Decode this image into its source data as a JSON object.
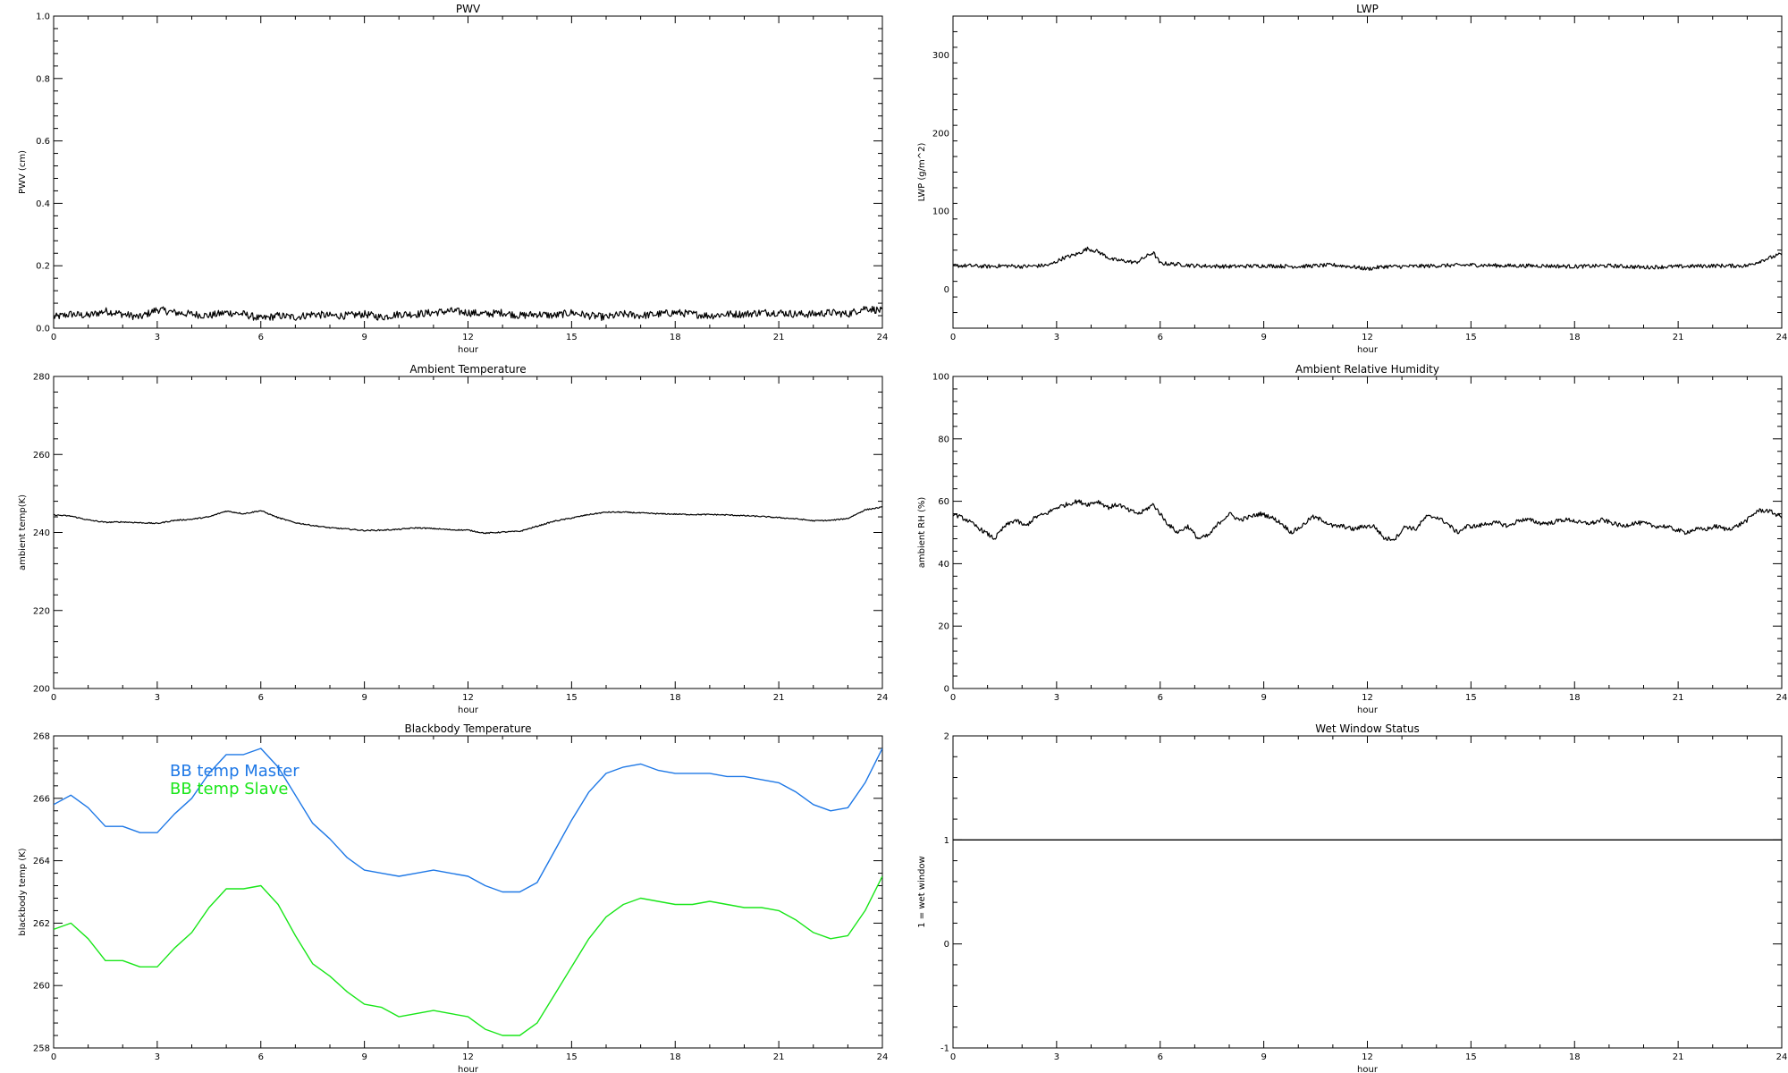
{
  "chart_data": [
    {
      "type": "line",
      "title": "PWV",
      "xlabel": "hour",
      "ylabel": "PWV (cm)",
      "xlim": [
        0,
        24
      ],
      "ylim": [
        0,
        1.0
      ],
      "xticks": [
        "0",
        "3",
        "6",
        "9",
        "12",
        "15",
        "18",
        "21",
        "24"
      ],
      "yticks": [
        "0.0",
        "0.2",
        "0.4",
        "0.6",
        "0.8",
        "1.0"
      ],
      "series": [
        {
          "color": "#000000",
          "noise": 0.012,
          "x": [
            0,
            0.5,
            1,
            1.5,
            2,
            2.5,
            3,
            3.5,
            4,
            4.5,
            5,
            5.5,
            6,
            6.5,
            7,
            7.5,
            8,
            8.5,
            9,
            9.5,
            10,
            10.5,
            11,
            11.5,
            12,
            12.5,
            13,
            13.5,
            14,
            14.5,
            15,
            15.5,
            16,
            16.5,
            17,
            17.5,
            18,
            18.5,
            19,
            19.5,
            20,
            20.5,
            21,
            21.5,
            22,
            22.5,
            23,
            23.5,
            24
          ],
          "y": [
            0.035,
            0.045,
            0.04,
            0.055,
            0.045,
            0.035,
            0.06,
            0.05,
            0.045,
            0.04,
            0.05,
            0.045,
            0.03,
            0.04,
            0.035,
            0.045,
            0.04,
            0.04,
            0.045,
            0.035,
            0.045,
            0.045,
            0.05,
            0.055,
            0.05,
            0.045,
            0.05,
            0.04,
            0.045,
            0.04,
            0.05,
            0.04,
            0.035,
            0.045,
            0.04,
            0.045,
            0.05,
            0.045,
            0.04,
            0.045,
            0.045,
            0.05,
            0.05,
            0.045,
            0.045,
            0.05,
            0.045,
            0.065,
            0.055
          ]
        }
      ]
    },
    {
      "type": "line",
      "title": "LWP",
      "xlabel": "hour",
      "ylabel": "LWP (g/m^2)",
      "xlim": [
        0,
        24
      ],
      "ylim": [
        -50,
        350
      ],
      "xticks": [
        "0",
        "3",
        "6",
        "9",
        "12",
        "15",
        "18",
        "21",
        "24"
      ],
      "yticks": [
        "0",
        "100",
        "200",
        "300"
      ],
      "series": [
        {
          "color": "#000000",
          "noise": 2.5,
          "x": [
            0,
            0.5,
            1,
            1.5,
            2,
            2.5,
            2.8,
            3.2,
            3.6,
            3.9,
            4.2,
            4.6,
            5,
            5.3,
            5.6,
            5.8,
            6,
            6.5,
            7,
            8,
            9,
            10,
            11,
            11.5,
            12,
            12.5,
            13,
            14,
            15,
            16,
            17,
            18,
            19,
            20,
            21,
            22,
            23,
            23.5,
            24
          ],
          "y": [
            30,
            30,
            29,
            30,
            29,
            30,
            31,
            40,
            45,
            52,
            48,
            38,
            36,
            34,
            42,
            47,
            33,
            32,
            30,
            29,
            30,
            29,
            31,
            29,
            26,
            29,
            29,
            30,
            31,
            30,
            30,
            29,
            30,
            28,
            29,
            30,
            30,
            38,
            45
          ]
        }
      ]
    },
    {
      "type": "line",
      "title": "Ambient Temperature",
      "xlabel": "hour",
      "ylabel": "ambient temp(K)",
      "xlim": [
        0,
        24
      ],
      "ylim": [
        200,
        280
      ],
      "xticks": [
        "0",
        "3",
        "6",
        "9",
        "12",
        "15",
        "18",
        "21",
        "24"
      ],
      "yticks": [
        "200",
        "220",
        "240",
        "260",
        "280"
      ],
      "series": [
        {
          "color": "#000000",
          "noise": 0.15,
          "x": [
            0,
            0.5,
            1,
            1.5,
            2,
            2.5,
            3,
            3.5,
            4,
            4.5,
            5,
            5.5,
            6,
            6.5,
            7,
            7.5,
            8,
            8.5,
            9,
            9.5,
            10,
            10.5,
            11,
            11.5,
            12,
            12.5,
            13,
            13.5,
            14,
            14.5,
            15,
            15.5,
            16,
            16.5,
            17,
            17.5,
            18,
            18.5,
            19,
            19.5,
            20,
            20.5,
            21,
            21.5,
            22,
            22.5,
            23,
            23.5,
            24
          ],
          "y": [
            244.5,
            244.2,
            243.2,
            242.6,
            242.7,
            242.5,
            242.3,
            243.1,
            243.4,
            244.0,
            245.5,
            244.8,
            245.6,
            243.8,
            242.5,
            241.8,
            241.2,
            240.9,
            240.5,
            240.6,
            240.8,
            241.2,
            241.0,
            240.7,
            240.6,
            239.8,
            240.1,
            240.3,
            241.6,
            242.9,
            243.7,
            244.6,
            245.2,
            245.2,
            245.0,
            244.8,
            244.7,
            244.6,
            244.6,
            244.5,
            244.3,
            244.1,
            243.8,
            243.5,
            243.0,
            243.1,
            243.6,
            245.8,
            246.5
          ]
        }
      ]
    },
    {
      "type": "line",
      "title": "Ambient Relative Humidity",
      "xlabel": "hour",
      "ylabel": "ambient RH (%)",
      "xlim": [
        0,
        24
      ],
      "ylim": [
        0,
        100
      ],
      "xticks": [
        "0",
        "3",
        "6",
        "9",
        "12",
        "15",
        "18",
        "21",
        "24"
      ],
      "yticks": [
        "0",
        "20",
        "40",
        "60",
        "80",
        "100"
      ],
      "series": [
        {
          "color": "#000000",
          "noise": 0.7,
          "x": [
            0,
            0.4,
            0.8,
            1.2,
            1.5,
            1.8,
            2.1,
            2.4,
            2.7,
            3,
            3.3,
            3.6,
            3.9,
            4.2,
            4.5,
            4.8,
            5.1,
            5.4,
            5.8,
            6.2,
            6.5,
            6.8,
            7.1,
            7.4,
            7.7,
            8,
            8.3,
            8.6,
            8.9,
            9.2,
            9.5,
            9.8,
            10.1,
            10.4,
            10.7,
            11,
            11.3,
            11.6,
            11.9,
            12.2,
            12.5,
            12.8,
            13.1,
            13.4,
            13.7,
            14,
            14.3,
            14.6,
            14.9,
            15.2,
            15.5,
            15.8,
            16.1,
            16.4,
            16.7,
            17,
            17.3,
            17.6,
            17.9,
            18.2,
            18.5,
            18.8,
            19.1,
            19.4,
            19.7,
            20,
            20.3,
            20.6,
            20.9,
            21.2,
            21.5,
            21.8,
            22.1,
            22.4,
            22.7,
            23,
            23.3,
            23.6,
            24
          ],
          "y": [
            56,
            54,
            51,
            48,
            52,
            54,
            52,
            55,
            56,
            58,
            59,
            60,
            59,
            60,
            58,
            59,
            57,
            56,
            59,
            53,
            50,
            52,
            48,
            49,
            53,
            56,
            54,
            55,
            56,
            55,
            53,
            50,
            52,
            55,
            54,
            52,
            52,
            51,
            52,
            52,
            48,
            48,
            52,
            51,
            55,
            55,
            53,
            50,
            52,
            52,
            53,
            53,
            52,
            54,
            54,
            53,
            53,
            54,
            54,
            53,
            53,
            54,
            53,
            52,
            53,
            53,
            52,
            52,
            51,
            50,
            51,
            51,
            52,
            51,
            52,
            54,
            57,
            57,
            55
          ]
        }
      ]
    },
    {
      "type": "line",
      "title": "Blackbody Temperature",
      "xlabel": "hour",
      "ylabel": "blackbody temp (K)",
      "xlim": [
        0,
        24
      ],
      "ylim": [
        258,
        268
      ],
      "xticks": [
        "0",
        "3",
        "6",
        "9",
        "12",
        "15",
        "18",
        "21",
        "24"
      ],
      "yticks": [
        "258",
        "260",
        "262",
        "264",
        "266",
        "268"
      ],
      "legend": {
        "placement": "top-left",
        "entries": [
          "BB temp Master",
          "BB temp Slave"
        ]
      },
      "series": [
        {
          "name": "BB temp Master",
          "color": "#1e78e6",
          "noise": 0,
          "x": [
            0,
            0.5,
            1,
            1.5,
            2,
            2.5,
            3,
            3.5,
            4,
            4.5,
            5,
            5.5,
            6,
            6.5,
            7,
            7.5,
            8,
            8.5,
            9,
            9.5,
            10,
            10.5,
            11,
            11.5,
            12,
            12.5,
            13,
            13.5,
            14,
            14.5,
            15,
            15.5,
            16,
            16.5,
            17,
            17.5,
            18,
            18.5,
            19,
            19.5,
            20,
            20.5,
            21,
            21.5,
            22,
            22.5,
            23,
            23.5,
            24
          ],
          "y": [
            265.8,
            266.1,
            265.7,
            265.1,
            265.1,
            264.9,
            264.9,
            265.5,
            266.0,
            266.8,
            267.4,
            267.4,
            267.6,
            267.0,
            266.1,
            265.2,
            264.7,
            264.1,
            263.7,
            263.6,
            263.5,
            263.6,
            263.7,
            263.6,
            263.5,
            263.2,
            263.0,
            263.0,
            263.3,
            264.3,
            265.3,
            266.2,
            266.8,
            267.0,
            267.1,
            266.9,
            266.8,
            266.8,
            266.8,
            266.7,
            266.7,
            266.6,
            266.5,
            266.2,
            265.8,
            265.6,
            265.7,
            266.5,
            267.6
          ]
        },
        {
          "name": "BB temp Slave",
          "color": "#19e619",
          "noise": 0,
          "x": [
            0,
            0.5,
            1,
            1.5,
            2,
            2.5,
            3,
            3.5,
            4,
            4.5,
            5,
            5.5,
            6,
            6.5,
            7,
            7.5,
            8,
            8.5,
            9,
            9.5,
            10,
            10.5,
            11,
            11.5,
            12,
            12.5,
            13,
            13.5,
            14,
            14.5,
            15,
            15.5,
            16,
            16.5,
            17,
            17.5,
            18,
            18.5,
            19,
            19.5,
            20,
            20.5,
            21,
            21.5,
            22,
            22.5,
            23,
            23.5,
            24
          ],
          "y": [
            261.8,
            262.0,
            261.5,
            260.8,
            260.8,
            260.6,
            260.6,
            261.2,
            261.7,
            262.5,
            263.1,
            263.1,
            263.2,
            262.6,
            261.6,
            260.7,
            260.3,
            259.8,
            259.4,
            259.3,
            259.0,
            259.1,
            259.2,
            259.1,
            259.0,
            258.6,
            258.4,
            258.4,
            258.8,
            259.7,
            260.6,
            261.5,
            262.2,
            262.6,
            262.8,
            262.7,
            262.6,
            262.6,
            262.7,
            262.6,
            262.5,
            262.5,
            262.4,
            262.1,
            261.7,
            261.5,
            261.6,
            262.4,
            263.5
          ]
        }
      ]
    },
    {
      "type": "line",
      "title": "Wet Window Status",
      "xlabel": "hour",
      "ylabel": "1 = wet window",
      "xlim": [
        0,
        24
      ],
      "ylim": [
        -1,
        2
      ],
      "xticks": [
        "0",
        "3",
        "6",
        "9",
        "12",
        "15",
        "18",
        "21",
        "24"
      ],
      "yticks": [
        "-1",
        "0",
        "1",
        "2"
      ],
      "series": [
        {
          "color": "#000000",
          "noise": 0,
          "x": [
            0,
            24
          ],
          "y": [
            1,
            1
          ]
        }
      ]
    }
  ]
}
